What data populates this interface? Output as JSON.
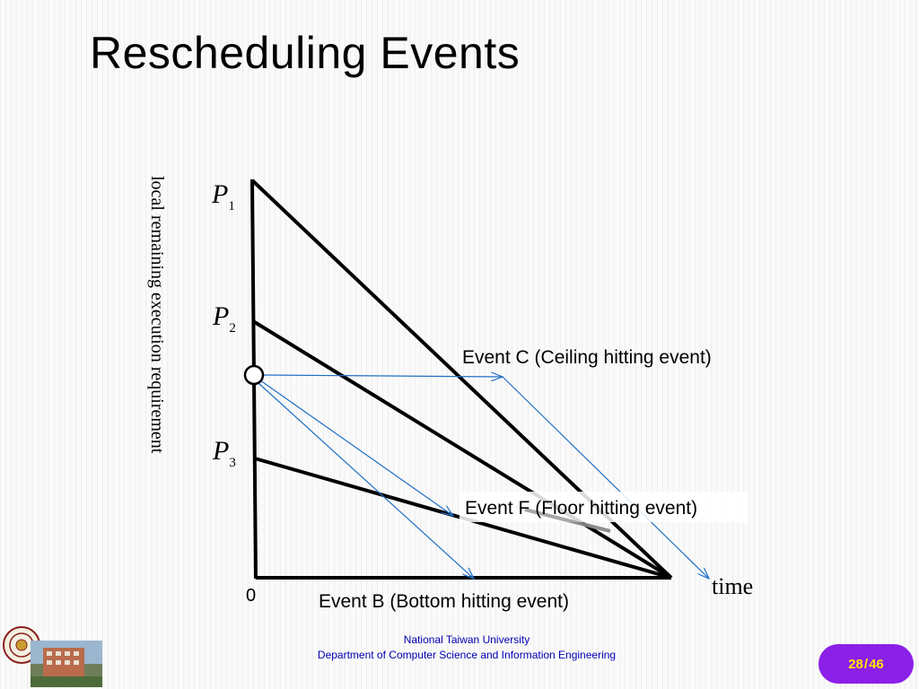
{
  "slide": {
    "title": "Rescheduling Events",
    "y_axis_label": "local remaining execution requirement",
    "x_axis_label": "time",
    "origin_label": "0",
    "priority_labels": [
      {
        "letter": "P",
        "sub": "1"
      },
      {
        "letter": "P",
        "sub": "2"
      },
      {
        "letter": "P",
        "sub": "3"
      }
    ],
    "events": {
      "ceiling": "Event C (Ceiling hitting event)",
      "floor": "Event F (Floor hitting event)",
      "bottom": "Event B (Bottom hitting event)"
    }
  },
  "footer": {
    "university": "National Taiwan University",
    "department": "Department of Computer Science and Information Engineering"
  },
  "page": {
    "current": "28",
    "separator": "/",
    "total": "46"
  },
  "colors": {
    "lines": "#000000",
    "arrows": "#1f6fc4",
    "badge": "#8b20e8",
    "badge_text": "#ffe600",
    "footer_text": "#0000b3"
  }
}
